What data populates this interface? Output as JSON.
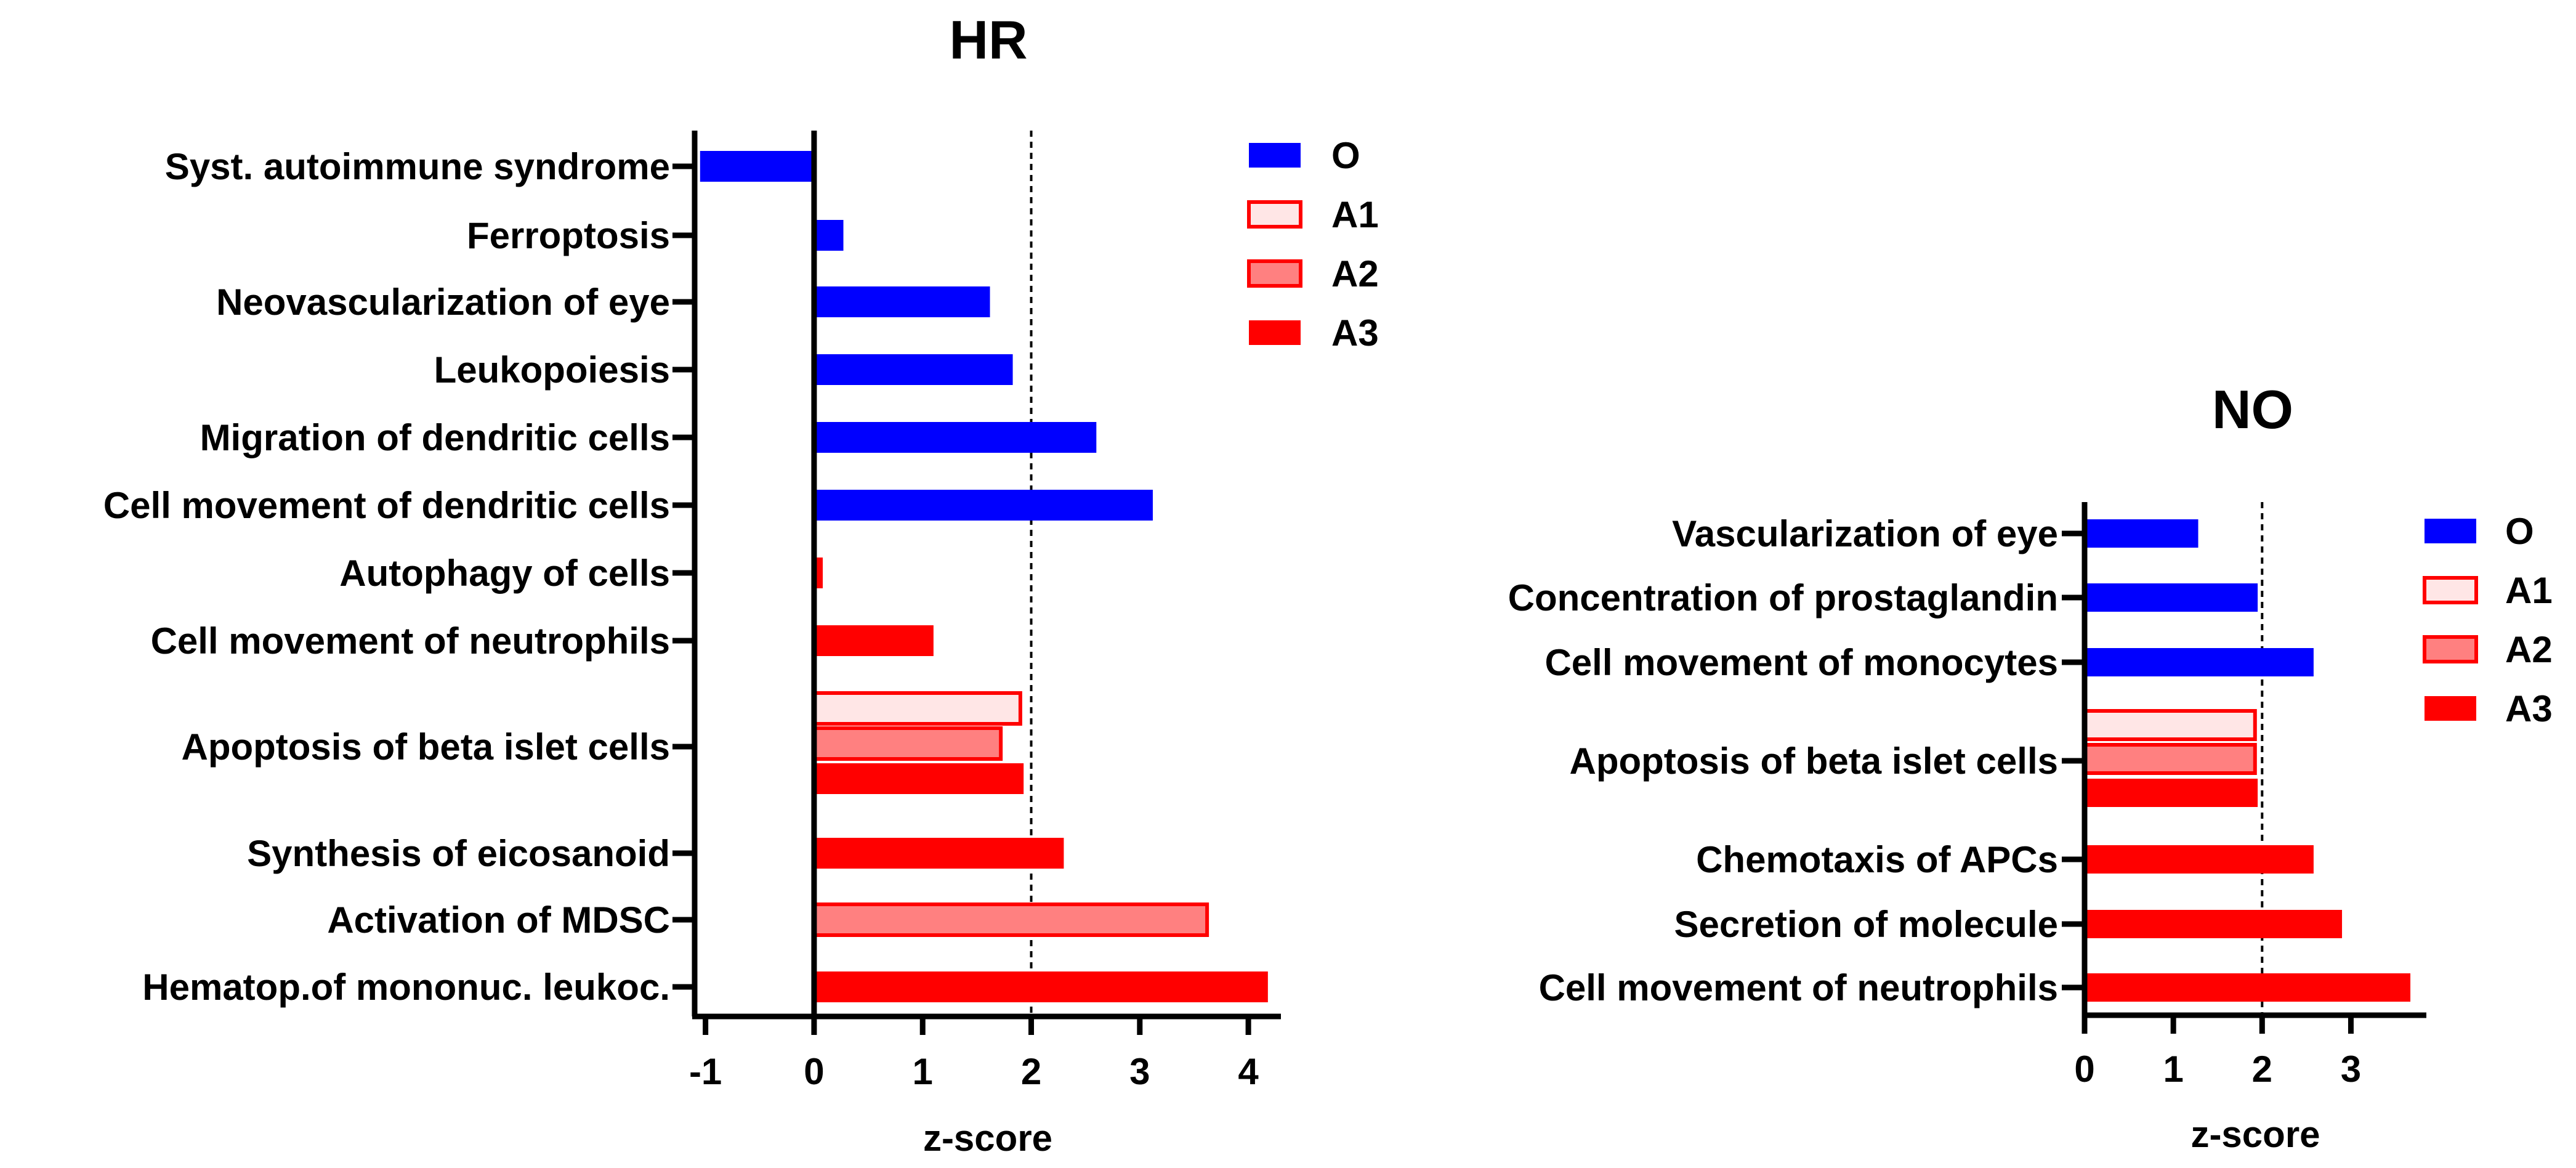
{
  "chart_data": [
    {
      "type": "bar",
      "orientation": "horizontal",
      "title": "HR",
      "xlabel": "z-score",
      "ylabel": "",
      "xlim": [
        -1.1,
        4.3
      ],
      "xticks": [
        "-1",
        "0",
        "1",
        "2",
        "3",
        "4"
      ],
      "threshold_line": 2,
      "legend": [
        "O",
        "A1",
        "A2",
        "A3"
      ],
      "categories": [
        "Syst. autoimmune syndrome",
        "Ferroptosis",
        "Neovascularization of eye",
        "Leukopoiesis",
        "Migration of dendritic cells",
        "Cell movement of dendritic cells",
        "Autophagy of cells",
        "Cell movement of neutrophils",
        "Apoptosis of beta islet cells",
        "Synthesis of eicosanoid",
        "Activation of MDSC",
        "Hematop.of mononuc. leukoc."
      ],
      "bars": [
        {
          "category": "Syst. autoimmune syndrome",
          "series": "O",
          "value": -1.05
        },
        {
          "category": "Ferroptosis",
          "series": "O",
          "value": 0.27
        },
        {
          "category": "Neovascularization of eye",
          "series": "O",
          "value": 1.62
        },
        {
          "category": "Leukopoiesis",
          "series": "O",
          "value": 1.83
        },
        {
          "category": "Migration of dendritic cells",
          "series": "O",
          "value": 2.6
        },
        {
          "category": "Cell movement of dendritic cells",
          "series": "O",
          "value": 3.12
        },
        {
          "category": "Autophagy of cells",
          "series": "A3",
          "value": 0.08
        },
        {
          "category": "Cell movement of neutrophils",
          "series": "A3",
          "value": 1.1
        },
        {
          "category": "Apoptosis of beta islet cells",
          "series": "A1",
          "value": 1.9
        },
        {
          "category": "Apoptosis of beta islet cells",
          "series": "A2",
          "value": 1.72
        },
        {
          "category": "Apoptosis of beta islet cells",
          "series": "A3",
          "value": 1.93
        },
        {
          "category": "Synthesis of eicosanoid",
          "series": "A3",
          "value": 2.3
        },
        {
          "category": "Activation of MDSC",
          "series": "A2",
          "value": 3.62
        },
        {
          "category": "Hematop.of mononuc. leukoc.",
          "series": "A3",
          "value": 4.18
        }
      ]
    },
    {
      "type": "bar",
      "orientation": "horizontal",
      "title": "NO",
      "xlabel": "z-score",
      "ylabel": "",
      "xlim": [
        0,
        3.85
      ],
      "xticks": [
        "0",
        "1",
        "2",
        "3"
      ],
      "threshold_line": 2,
      "legend": [
        "O",
        "A1",
        "A2",
        "A3"
      ],
      "categories": [
        "Vascularization of eye",
        "Concentration of prostaglandin",
        "Cell movement of monocytes",
        "Apoptosis of beta islet cells",
        "Chemotaxis of APCs",
        "Secretion of molecule",
        "Cell movement of neutrophils"
      ],
      "bars": [
        {
          "category": "Vascularization of eye",
          "series": "O",
          "value": 1.28
        },
        {
          "category": "Concentration of prostaglandin",
          "series": "O",
          "value": 1.95
        },
        {
          "category": "Cell movement of monocytes",
          "series": "O",
          "value": 2.58
        },
        {
          "category": "Apoptosis of beta islet cells",
          "series": "A1",
          "value": 1.92
        },
        {
          "category": "Apoptosis of beta islet cells",
          "series": "A2",
          "value": 1.92
        },
        {
          "category": "Apoptosis of beta islet cells",
          "series": "A3",
          "value": 1.95
        },
        {
          "category": "Chemotaxis of APCs",
          "series": "A3",
          "value": 2.58
        },
        {
          "category": "Secretion of molecule",
          "series": "A3",
          "value": 2.9
        },
        {
          "category": "Cell movement of neutrophils",
          "series": "A3",
          "value": 3.67
        }
      ]
    }
  ],
  "series_styles": {
    "O": {
      "fill": "#0000ff",
      "stroke": "#0000ff"
    },
    "A1": {
      "fill": "#ffe6e6",
      "stroke": "#ff0000"
    },
    "A2": {
      "fill": "#ff8080",
      "stroke": "#ff0000"
    },
    "A3": {
      "fill": "#ff0000",
      "stroke": "#ff0000"
    }
  }
}
